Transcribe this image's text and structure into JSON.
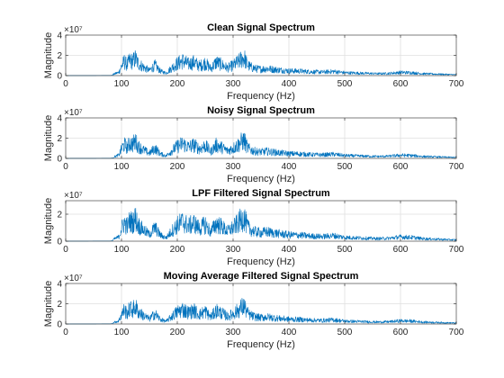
{
  "figure": {
    "background": "#ffffff",
    "axis_color": "#262626",
    "grid_color": "#dfdfdf",
    "line_color": "#0072bd"
  },
  "chart_data": [
    {
      "type": "line",
      "title": "Clean Signal Spectrum",
      "xlabel": "Frequency (Hz)",
      "ylabel": "Magnitude",
      "xlim": [
        0,
        700
      ],
      "ylim": [
        0,
        4
      ],
      "xticks": [
        "0",
        "100",
        "200",
        "300",
        "400",
        "500",
        "600",
        "700"
      ],
      "yticks": [
        "0",
        "2",
        "4"
      ],
      "y_exponent_label": "×10⁷",
      "grid": true,
      "series": [
        {
          "color": "#0072bd",
          "x": [
            0,
            80,
            95,
            100,
            105,
            110,
            115,
            120,
            125,
            130,
            140,
            150,
            160,
            170,
            180,
            190,
            200,
            210,
            220,
            230,
            240,
            250,
            260,
            270,
            280,
            290,
            300,
            310,
            315,
            320,
            325,
            330,
            340,
            350,
            360,
            380,
            400,
            420,
            440,
            460,
            480,
            500,
            520,
            540,
            560,
            580,
            600,
            620,
            640,
            660,
            680,
            700
          ],
          "y": [
            0,
            0.05,
            0.5,
            1.5,
            2.2,
            1.7,
            2.4,
            2.2,
            2.7,
            1.9,
            1.3,
            0.8,
            1.6,
            0.7,
            0.4,
            1.2,
            1.9,
            2.3,
            1.8,
            2.1,
            1.5,
            2.0,
            1.1,
            2.1,
            1.7,
            1.2,
            1.6,
            2.2,
            2.6,
            2.8,
            1.8,
            1.4,
            1.1,
            1.0,
            1.1,
            0.9,
            0.75,
            0.7,
            0.6,
            0.55,
            0.65,
            0.45,
            0.4,
            0.35,
            0.3,
            0.35,
            0.5,
            0.45,
            0.3,
            0.25,
            0.2,
            0.15
          ]
        }
      ]
    },
    {
      "type": "line",
      "title": "Noisy Signal Spectrum",
      "xlabel": "Frequency (Hz)",
      "ylabel": "Magnitude",
      "xlim": [
        0,
        700
      ],
      "ylim": [
        0,
        4
      ],
      "xticks": [
        "0",
        "100",
        "200",
        "300",
        "400",
        "500",
        "600",
        "700"
      ],
      "yticks": [
        "0",
        "2",
        "4"
      ],
      "y_exponent_label": "×10⁷",
      "grid": true,
      "series": [
        {
          "color": "#0072bd",
          "x": [
            0,
            80,
            95,
            100,
            105,
            110,
            115,
            120,
            125,
            130,
            140,
            150,
            160,
            170,
            180,
            190,
            200,
            210,
            220,
            230,
            240,
            250,
            260,
            270,
            280,
            290,
            300,
            310,
            315,
            320,
            325,
            330,
            340,
            350,
            360,
            380,
            400,
            420,
            440,
            460,
            480,
            500,
            520,
            540,
            560,
            580,
            600,
            620,
            640,
            660,
            680,
            700
          ],
          "y": [
            0,
            0.05,
            0.5,
            1.5,
            2.2,
            1.7,
            2.4,
            2.2,
            2.7,
            1.9,
            1.3,
            0.8,
            1.6,
            0.7,
            0.4,
            1.2,
            1.9,
            2.3,
            1.8,
            2.1,
            1.5,
            2.0,
            1.1,
            2.1,
            1.7,
            1.2,
            1.6,
            2.2,
            2.6,
            2.8,
            1.8,
            1.4,
            1.1,
            1.0,
            1.1,
            0.9,
            0.75,
            0.7,
            0.6,
            0.55,
            0.65,
            0.45,
            0.4,
            0.35,
            0.3,
            0.35,
            0.5,
            0.45,
            0.3,
            0.25,
            0.2,
            0.15
          ]
        }
      ]
    },
    {
      "type": "line",
      "title": "LPF Filtered Signal Spectrum",
      "xlabel": "Frequency (Hz)",
      "ylabel": "Magnitude",
      "xlim": [
        0,
        700
      ],
      "ylim": [
        0,
        3
      ],
      "xticks": [
        "0",
        "100",
        "200",
        "300",
        "400",
        "500",
        "600",
        "700"
      ],
      "yticks": [
        "0",
        "2"
      ],
      "y_exponent_label": "×10⁷",
      "grid": true,
      "series": [
        {
          "color": "#0072bd",
          "x": [
            0,
            80,
            95,
            100,
            105,
            110,
            115,
            120,
            125,
            130,
            140,
            150,
            160,
            170,
            180,
            190,
            200,
            210,
            220,
            230,
            240,
            250,
            260,
            270,
            280,
            290,
            300,
            310,
            315,
            320,
            325,
            330,
            340,
            350,
            360,
            380,
            400,
            420,
            440,
            460,
            480,
            500,
            520,
            540,
            560,
            580,
            600,
            620,
            640,
            660,
            680,
            700
          ],
          "y": [
            0,
            0.05,
            0.5,
            1.5,
            2.2,
            1.7,
            2.4,
            2.2,
            2.7,
            1.9,
            1.3,
            0.8,
            1.6,
            0.7,
            0.4,
            1.2,
            1.9,
            2.3,
            1.8,
            2.1,
            1.5,
            2.0,
            1.1,
            2.1,
            1.7,
            1.2,
            1.6,
            2.2,
            2.6,
            2.8,
            1.8,
            1.4,
            1.1,
            1.0,
            1.1,
            0.9,
            0.75,
            0.7,
            0.6,
            0.55,
            0.65,
            0.45,
            0.4,
            0.35,
            0.3,
            0.35,
            0.5,
            0.45,
            0.3,
            0.25,
            0.2,
            0.15
          ]
        }
      ]
    },
    {
      "type": "line",
      "title": "Moving Average Filtered Signal Spectrum",
      "xlabel": "Frequency (Hz)",
      "ylabel": "Magnitude",
      "xlim": [
        0,
        700
      ],
      "ylim": [
        0,
        4
      ],
      "xticks": [
        "0",
        "100",
        "200",
        "300",
        "400",
        "500",
        "600",
        "700"
      ],
      "yticks": [
        "0",
        "2",
        "4"
      ],
      "y_exponent_label": "×10⁷",
      "grid": true,
      "series": [
        {
          "color": "#0072bd",
          "x": [
            0,
            80,
            95,
            100,
            105,
            110,
            115,
            120,
            125,
            130,
            140,
            150,
            160,
            170,
            180,
            190,
            200,
            210,
            220,
            230,
            240,
            250,
            260,
            270,
            280,
            290,
            300,
            310,
            315,
            320,
            325,
            330,
            340,
            350,
            360,
            380,
            400,
            420,
            440,
            460,
            480,
            500,
            520,
            540,
            560,
            580,
            600,
            620,
            640,
            660,
            680,
            700
          ],
          "y": [
            0,
            0.05,
            0.5,
            1.5,
            2.2,
            1.7,
            2.4,
            2.2,
            2.7,
            1.9,
            1.3,
            0.8,
            1.6,
            0.7,
            0.4,
            1.2,
            1.9,
            2.3,
            1.8,
            2.1,
            1.5,
            2.0,
            1.1,
            2.1,
            1.7,
            1.2,
            1.6,
            2.2,
            2.6,
            2.8,
            1.8,
            1.4,
            1.1,
            1.0,
            1.1,
            0.9,
            0.75,
            0.7,
            0.6,
            0.55,
            0.65,
            0.45,
            0.4,
            0.35,
            0.3,
            0.35,
            0.5,
            0.45,
            0.3,
            0.25,
            0.2,
            0.15
          ]
        }
      ]
    }
  ]
}
